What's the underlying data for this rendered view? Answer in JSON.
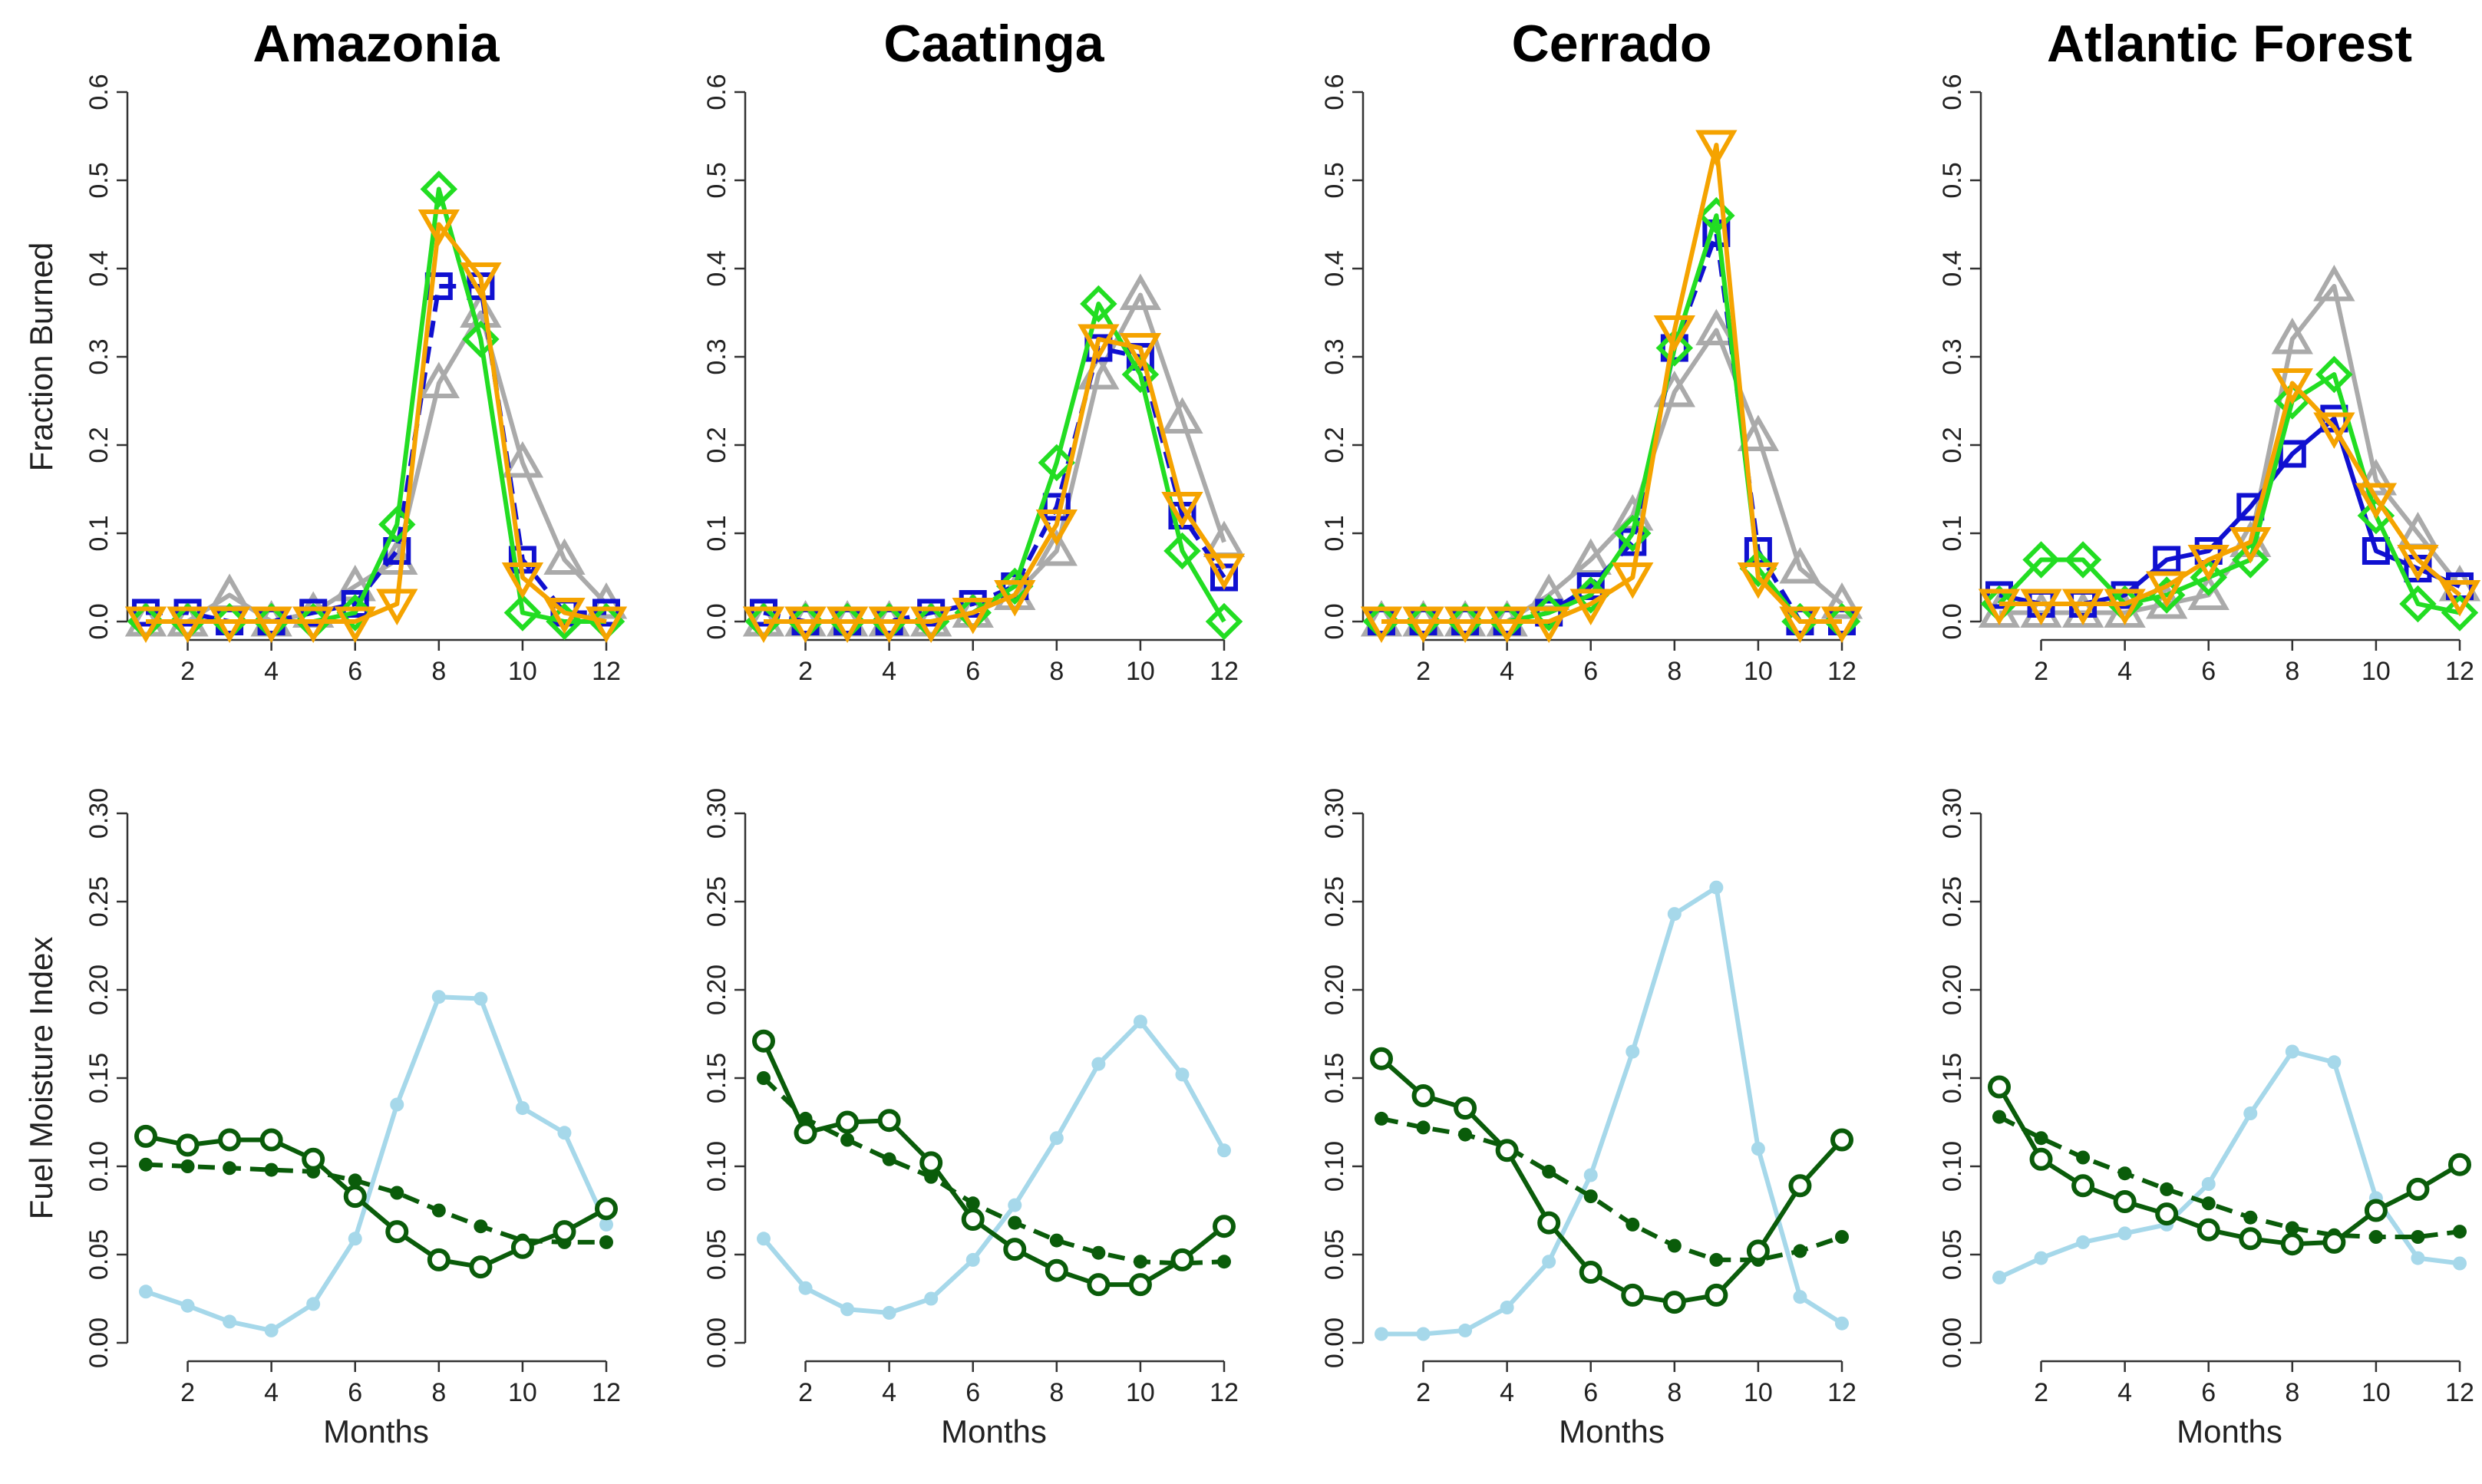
{
  "chart_data": [
    {
      "type": "line",
      "panel": "fraction-burned-amazonia",
      "title": "Amazonia",
      "ylabel": "Fraction Burned",
      "xlabel": "",
      "x": [
        1,
        2,
        3,
        4,
        5,
        6,
        7,
        8,
        9,
        10,
        11,
        12
      ],
      "xticks": [
        2,
        4,
        6,
        8,
        10,
        12
      ],
      "xtick_labels": [
        "2",
        "4",
        "6",
        "8",
        "10",
        "12"
      ],
      "ylim": [
        0,
        0.6
      ],
      "yticks": [
        0,
        0.1,
        0.2,
        0.3,
        0.4,
        0.5,
        0.6
      ],
      "ytick_labels": [
        "0.0",
        "0.1",
        "0.2",
        "0.3",
        "0.4",
        "0.5",
        "0.6"
      ],
      "series": [
        {
          "name": "gray-triangle",
          "color": "#aaaaaa",
          "marker": "triangle-up",
          "values": [
            0.0,
            0.0,
            0.03,
            0.0,
            0.01,
            0.04,
            0.07,
            0.27,
            0.35,
            0.18,
            0.07,
            0.02
          ]
        },
        {
          "name": "blue-square",
          "color": "#1010d0",
          "marker": "square",
          "dashed": true,
          "values": [
            0.01,
            0.01,
            0.0,
            0.0,
            0.01,
            0.02,
            0.08,
            0.38,
            0.38,
            0.07,
            0.01,
            0.01
          ]
        },
        {
          "name": "green-diamond",
          "color": "#22dd22",
          "marker": "diamond",
          "values": [
            0.0,
            0.0,
            0.0,
            0.0,
            0.0,
            0.01,
            0.11,
            0.49,
            0.32,
            0.01,
            0.0,
            0.0
          ]
        },
        {
          "name": "orange-triangle",
          "color": "#f5a300",
          "marker": "triangle-down",
          "values": [
            0.0,
            0.0,
            0.0,
            0.0,
            0.0,
            0.0,
            0.02,
            0.45,
            0.39,
            0.05,
            0.01,
            0.0
          ]
        }
      ]
    },
    {
      "type": "line",
      "panel": "fraction-burned-caatinga",
      "title": "Caatinga",
      "ylabel": "",
      "xlabel": "",
      "x": [
        1,
        2,
        3,
        4,
        5,
        6,
        7,
        8,
        9,
        10,
        11,
        12
      ],
      "xticks": [
        2,
        4,
        6,
        8,
        10,
        12
      ],
      "xtick_labels": [
        "2",
        "4",
        "6",
        "8",
        "10",
        "12"
      ],
      "ylim": [
        0,
        0.6
      ],
      "yticks": [
        0,
        0.1,
        0.2,
        0.3,
        0.4,
        0.5,
        0.6
      ],
      "ytick_labels": [
        "0.0",
        "0.1",
        "0.2",
        "0.3",
        "0.4",
        "0.5",
        "0.6"
      ],
      "series": [
        {
          "name": "gray-triangle",
          "color": "#aaaaaa",
          "marker": "triangle-up",
          "values": [
            0.0,
            0.0,
            0.0,
            0.0,
            0.0,
            0.01,
            0.03,
            0.08,
            0.28,
            0.37,
            0.23,
            0.09
          ]
        },
        {
          "name": "blue-square",
          "color": "#1010d0",
          "marker": "square",
          "dashed": true,
          "values": [
            0.01,
            0.0,
            0.0,
            0.0,
            0.01,
            0.02,
            0.04,
            0.13,
            0.31,
            0.3,
            0.12,
            0.05
          ]
        },
        {
          "name": "green-diamond",
          "color": "#22dd22",
          "marker": "diamond",
          "values": [
            0.0,
            0.0,
            0.0,
            0.0,
            0.0,
            0.01,
            0.04,
            0.18,
            0.36,
            0.28,
            0.08,
            0.0
          ]
        },
        {
          "name": "orange-triangle",
          "color": "#f5a300",
          "marker": "triangle-down",
          "values": [
            0.0,
            0.0,
            0.0,
            0.0,
            0.0,
            0.01,
            0.03,
            0.11,
            0.32,
            0.31,
            0.13,
            0.06
          ]
        }
      ]
    },
    {
      "type": "line",
      "panel": "fraction-burned-cerrado",
      "title": "Cerrado",
      "ylabel": "",
      "xlabel": "",
      "x": [
        1,
        2,
        3,
        4,
        5,
        6,
        7,
        8,
        9,
        10,
        11,
        12
      ],
      "xticks": [
        2,
        4,
        6,
        8,
        10,
        12
      ],
      "xtick_labels": [
        "2",
        "4",
        "6",
        "8",
        "10",
        "12"
      ],
      "ylim": [
        0,
        0.6
      ],
      "yticks": [
        0,
        0.1,
        0.2,
        0.3,
        0.4,
        0.5,
        0.6
      ],
      "ytick_labels": [
        "0.0",
        "0.1",
        "0.2",
        "0.3",
        "0.4",
        "0.5",
        "0.6"
      ],
      "series": [
        {
          "name": "gray-triangle",
          "color": "#aaaaaa",
          "marker": "triangle-up",
          "values": [
            0.0,
            0.0,
            0.0,
            0.0,
            0.03,
            0.07,
            0.12,
            0.26,
            0.33,
            0.21,
            0.06,
            0.02
          ]
        },
        {
          "name": "blue-square",
          "color": "#1010d0",
          "marker": "square",
          "dashed": true,
          "values": [
            0.0,
            0.0,
            0.0,
            0.0,
            0.01,
            0.04,
            0.09,
            0.31,
            0.44,
            0.08,
            0.0,
            0.0
          ]
        },
        {
          "name": "green-diamond",
          "color": "#22dd22",
          "marker": "diamond",
          "values": [
            0.0,
            0.0,
            0.0,
            0.0,
            0.01,
            0.03,
            0.1,
            0.31,
            0.46,
            0.06,
            0.0,
            0.0
          ]
        },
        {
          "name": "orange-triangle",
          "color": "#f5a300",
          "marker": "triangle-down",
          "values": [
            0.0,
            0.0,
            0.0,
            0.0,
            0.0,
            0.02,
            0.05,
            0.33,
            0.54,
            0.05,
            0.0,
            0.0
          ]
        }
      ]
    },
    {
      "type": "line",
      "panel": "fraction-burned-atlantic-forest",
      "title": "Atlantic Forest",
      "ylabel": "",
      "xlabel": "",
      "x": [
        1,
        2,
        3,
        4,
        5,
        6,
        7,
        8,
        9,
        10,
        11,
        12
      ],
      "xticks": [
        2,
        4,
        6,
        8,
        10,
        12
      ],
      "xtick_labels": [
        "2",
        "4",
        "6",
        "8",
        "10",
        "12"
      ],
      "ylim": [
        0,
        0.6
      ],
      "yticks": [
        0,
        0.1,
        0.2,
        0.3,
        0.4,
        0.5,
        0.6
      ],
      "ytick_labels": [
        "0.0",
        "0.1",
        "0.2",
        "0.3",
        "0.4",
        "0.5",
        "0.6"
      ],
      "series": [
        {
          "name": "gray-triangle",
          "color": "#aaaaaa",
          "marker": "triangle-up",
          "values": [
            0.01,
            0.01,
            0.01,
            0.01,
            0.02,
            0.03,
            0.09,
            0.32,
            0.38,
            0.16,
            0.1,
            0.04
          ]
        },
        {
          "name": "blue-square",
          "color": "#1010d0",
          "marker": "square",
          "values": [
            0.03,
            0.02,
            0.02,
            0.03,
            0.07,
            0.08,
            0.13,
            0.19,
            0.23,
            0.08,
            0.06,
            0.04
          ]
        },
        {
          "name": "green-diamond",
          "color": "#22dd22",
          "marker": "diamond",
          "values": [
            0.02,
            0.07,
            0.07,
            0.02,
            0.03,
            0.05,
            0.07,
            0.25,
            0.28,
            0.12,
            0.02,
            0.01
          ]
        },
        {
          "name": "orange-triangle",
          "color": "#f5a300",
          "marker": "triangle-down",
          "values": [
            0.02,
            0.02,
            0.02,
            0.02,
            0.04,
            0.07,
            0.09,
            0.27,
            0.22,
            0.14,
            0.07,
            0.03
          ]
        }
      ]
    },
    {
      "type": "line",
      "panel": "fuel-moisture-amazonia",
      "title": "",
      "ylabel": "Fuel Moisture Index",
      "xlabel": "Months",
      "x": [
        1,
        2,
        3,
        4,
        5,
        6,
        7,
        8,
        9,
        10,
        11,
        12
      ],
      "xticks": [
        2,
        4,
        6,
        8,
        10,
        12
      ],
      "xtick_labels": [
        "2",
        "4",
        "6",
        "8",
        "10",
        "12"
      ],
      "ylim": [
        0,
        0.3
      ],
      "yticks": [
        0,
        0.05,
        0.1,
        0.15,
        0.2,
        0.25,
        0.3
      ],
      "ytick_labels": [
        "0.00",
        "0.05",
        "0.10",
        "0.15",
        "0.20",
        "0.25",
        "0.30"
      ],
      "series": [
        {
          "name": "light-blue",
          "color": "#a6d8ea",
          "marker": "filled-circle",
          "values": [
            0.029,
            0.021,
            0.012,
            0.007,
            0.022,
            0.059,
            0.135,
            0.196,
            0.195,
            0.133,
            0.119,
            0.067
          ]
        },
        {
          "name": "dark-green-filled",
          "color": "#0a5c0a",
          "marker": "filled-circle",
          "dashed": true,
          "values": [
            0.101,
            0.1,
            0.099,
            0.098,
            0.097,
            0.092,
            0.085,
            0.075,
            0.066,
            0.058,
            0.057,
            0.057
          ]
        },
        {
          "name": "dark-green-open",
          "color": "#0a5c0a",
          "marker": "open-circle",
          "values": [
            0.117,
            0.112,
            0.115,
            0.115,
            0.104,
            0.083,
            0.063,
            0.047,
            0.043,
            0.054,
            0.063,
            0.076
          ]
        }
      ]
    },
    {
      "type": "line",
      "panel": "fuel-moisture-caatinga",
      "title": "",
      "ylabel": "",
      "xlabel": "Months",
      "x": [
        1,
        2,
        3,
        4,
        5,
        6,
        7,
        8,
        9,
        10,
        11,
        12
      ],
      "xticks": [
        2,
        4,
        6,
        8,
        10,
        12
      ],
      "xtick_labels": [
        "2",
        "4",
        "6",
        "8",
        "10",
        "12"
      ],
      "ylim": [
        0,
        0.3
      ],
      "yticks": [
        0,
        0.05,
        0.1,
        0.15,
        0.2,
        0.25,
        0.3
      ],
      "ytick_labels": [
        "0.00",
        "0.05",
        "0.10",
        "0.15",
        "0.20",
        "0.25",
        "0.30"
      ],
      "series": [
        {
          "name": "light-blue",
          "color": "#a6d8ea",
          "marker": "filled-circle",
          "values": [
            0.059,
            0.031,
            0.019,
            0.017,
            0.025,
            0.047,
            0.078,
            0.116,
            0.158,
            0.182,
            0.152,
            0.109
          ]
        },
        {
          "name": "dark-green-filled",
          "color": "#0a5c0a",
          "marker": "filled-circle",
          "dashed": true,
          "values": [
            0.15,
            0.127,
            0.115,
            0.104,
            0.094,
            0.079,
            0.068,
            0.058,
            0.051,
            0.046,
            0.045,
            0.046
          ]
        },
        {
          "name": "dark-green-open",
          "color": "#0a5c0a",
          "marker": "open-circle",
          "values": [
            0.171,
            0.119,
            0.125,
            0.126,
            0.102,
            0.07,
            0.053,
            0.041,
            0.033,
            0.033,
            0.047,
            0.066
          ]
        }
      ]
    },
    {
      "type": "line",
      "panel": "fuel-moisture-cerrado",
      "title": "",
      "ylabel": "",
      "xlabel": "Months",
      "x": [
        1,
        2,
        3,
        4,
        5,
        6,
        7,
        8,
        9,
        10,
        11,
        12
      ],
      "xticks": [
        2,
        4,
        6,
        8,
        10,
        12
      ],
      "xtick_labels": [
        "2",
        "4",
        "6",
        "8",
        "10",
        "12"
      ],
      "ylim": [
        0,
        0.3
      ],
      "yticks": [
        0,
        0.05,
        0.1,
        0.15,
        0.2,
        0.25,
        0.3
      ],
      "ytick_labels": [
        "0.00",
        "0.05",
        "0.10",
        "0.15",
        "0.20",
        "0.25",
        "0.30"
      ],
      "series": [
        {
          "name": "light-blue",
          "color": "#a6d8ea",
          "marker": "filled-circle",
          "values": [
            0.005,
            0.005,
            0.007,
            0.02,
            0.046,
            0.095,
            0.165,
            0.243,
            0.258,
            0.11,
            0.026,
            0.011
          ]
        },
        {
          "name": "dark-green-filled",
          "color": "#0a5c0a",
          "marker": "filled-circle",
          "dashed": true,
          "values": [
            0.127,
            0.122,
            0.118,
            0.111,
            0.097,
            0.083,
            0.067,
            0.055,
            0.047,
            0.047,
            0.052,
            0.06
          ]
        },
        {
          "name": "dark-green-open",
          "color": "#0a5c0a",
          "marker": "open-circle",
          "values": [
            0.161,
            0.14,
            0.133,
            0.109,
            0.068,
            0.04,
            0.027,
            0.023,
            0.027,
            0.052,
            0.089,
            0.115
          ]
        }
      ]
    },
    {
      "type": "line",
      "panel": "fuel-moisture-atlantic-forest",
      "title": "",
      "ylabel": "",
      "xlabel": "Months",
      "x": [
        1,
        2,
        3,
        4,
        5,
        6,
        7,
        8,
        9,
        10,
        11,
        12
      ],
      "xticks": [
        2,
        4,
        6,
        8,
        10,
        12
      ],
      "xtick_labels": [
        "2",
        "4",
        "6",
        "8",
        "10",
        "12"
      ],
      "ylim": [
        0,
        0.3
      ],
      "yticks": [
        0,
        0.05,
        0.1,
        0.15,
        0.2,
        0.25,
        0.3
      ],
      "ytick_labels": [
        "0.00",
        "0.05",
        "0.10",
        "0.15",
        "0.20",
        "0.25",
        "0.30"
      ],
      "series": [
        {
          "name": "light-blue",
          "color": "#a6d8ea",
          "marker": "filled-circle",
          "values": [
            0.037,
            0.048,
            0.057,
            0.062,
            0.067,
            0.09,
            0.13,
            0.165,
            0.159,
            0.082,
            0.048,
            0.045
          ]
        },
        {
          "name": "dark-green-filled",
          "color": "#0a5c0a",
          "marker": "filled-circle",
          "dashed": true,
          "values": [
            0.128,
            0.116,
            0.105,
            0.096,
            0.087,
            0.079,
            0.071,
            0.065,
            0.061,
            0.06,
            0.06,
            0.063
          ]
        },
        {
          "name": "dark-green-open",
          "color": "#0a5c0a",
          "marker": "open-circle",
          "values": [
            0.145,
            0.104,
            0.089,
            0.08,
            0.073,
            0.064,
            0.059,
            0.056,
            0.057,
            0.075,
            0.087,
            0.101
          ]
        }
      ]
    }
  ]
}
